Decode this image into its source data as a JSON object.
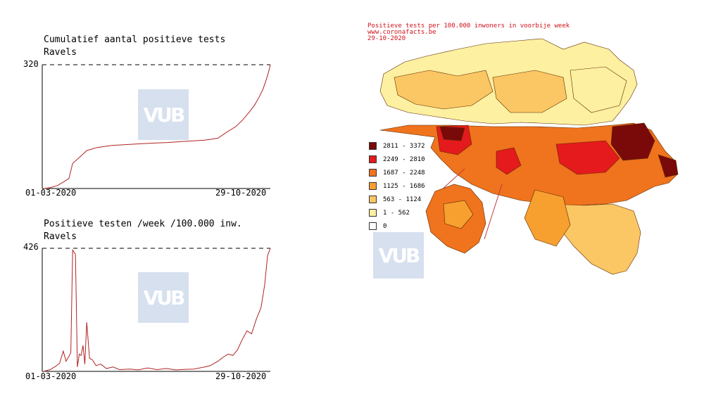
{
  "chart_data": [
    {
      "type": "line",
      "title": "Cumulatief aantal positieve tests",
      "subtitle": "Ravels",
      "x_start_label": "01-03-2020",
      "x_end_label": "29-10-2020",
      "y_max_label": "320",
      "ylim": [
        0,
        320
      ],
      "x": [
        "2020-03-01",
        "2020-03-08",
        "2020-03-16",
        "2020-03-23",
        "2020-03-28",
        "2020-04-01",
        "2020-04-08",
        "2020-04-16",
        "2020-04-27",
        "2020-05-12",
        "2020-06-01",
        "2020-06-21",
        "2020-07-11",
        "2020-07-31",
        "2020-08-20",
        "2020-09-03",
        "2020-09-12",
        "2020-09-22",
        "2020-09-29",
        "2020-10-06",
        "2020-10-12",
        "2020-10-17",
        "2020-10-21",
        "2020-10-24",
        "2020-10-27",
        "2020-10-29"
      ],
      "values": [
        0,
        2,
        8,
        18,
        26,
        65,
        80,
        98,
        106,
        111,
        114,
        117,
        119,
        122,
        125,
        130,
        145,
        160,
        176,
        196,
        215,
        236,
        256,
        276,
        300,
        320
      ],
      "color": "#b22222",
      "dashed_max_line": true
    },
    {
      "type": "line",
      "title": "Positieve testen /week /100.000 inw.",
      "subtitle": "Ravels",
      "x_start_label": "01-03-2020",
      "x_end_label": "29-10-2020",
      "y_max_label": "426",
      "ylim": [
        0,
        426
      ],
      "x": [
        "2020-03-01",
        "2020-03-08",
        "2020-03-14",
        "2020-03-18",
        "2020-03-22",
        "2020-03-25",
        "2020-03-28",
        "2020-03-30",
        "2020-04-01",
        "2020-04-04",
        "2020-04-06",
        "2020-04-08",
        "2020-04-10",
        "2020-04-12",
        "2020-04-14",
        "2020-04-16",
        "2020-04-19",
        "2020-04-22",
        "2020-04-26",
        "2020-05-01",
        "2020-05-07",
        "2020-05-14",
        "2020-05-21",
        "2020-06-01",
        "2020-06-10",
        "2020-06-20",
        "2020-06-30",
        "2020-07-10",
        "2020-07-20",
        "2020-07-30",
        "2020-08-08",
        "2020-08-18",
        "2020-08-26",
        "2020-09-03",
        "2020-09-09",
        "2020-09-14",
        "2020-09-19",
        "2020-09-24",
        "2020-09-29",
        "2020-10-04",
        "2020-10-09",
        "2020-10-14",
        "2020-10-19",
        "2020-10-23",
        "2020-10-26",
        "2020-10-29"
      ],
      "values": [
        0,
        6,
        18,
        28,
        70,
        35,
        52,
        65,
        420,
        405,
        15,
        60,
        55,
        90,
        25,
        170,
        45,
        40,
        20,
        25,
        10,
        15,
        6,
        8,
        5,
        12,
        6,
        10,
        5,
        7,
        8,
        14,
        20,
        35,
        50,
        60,
        55,
        75,
        110,
        140,
        130,
        180,
        220,
        300,
        400,
        426
      ],
      "color": "#b22222",
      "dashed_max_line": true
    },
    {
      "type": "heatmap",
      "title": "Positieve tests per 100.000 inwoners in voorbije week",
      "source": "www.coronafacts.be",
      "date": "29-10-2020",
      "legend": [
        {
          "label": "2811 - 3372",
          "color": "#7a0a0a"
        },
        {
          "label": "2249 - 2810",
          "color": "#e41a1c"
        },
        {
          "label": "1687 - 2248",
          "color": "#f0731d"
        },
        {
          "label": "1125 - 1686",
          "color": "#f7a030"
        },
        {
          "label": "563 - 1124",
          "color": "#fbc664"
        },
        {
          "label": "1 - 562",
          "color": "#fdf0a0"
        },
        {
          "label": "0",
          "color": "#ffffff"
        }
      ]
    }
  ],
  "watermark": "VUB"
}
